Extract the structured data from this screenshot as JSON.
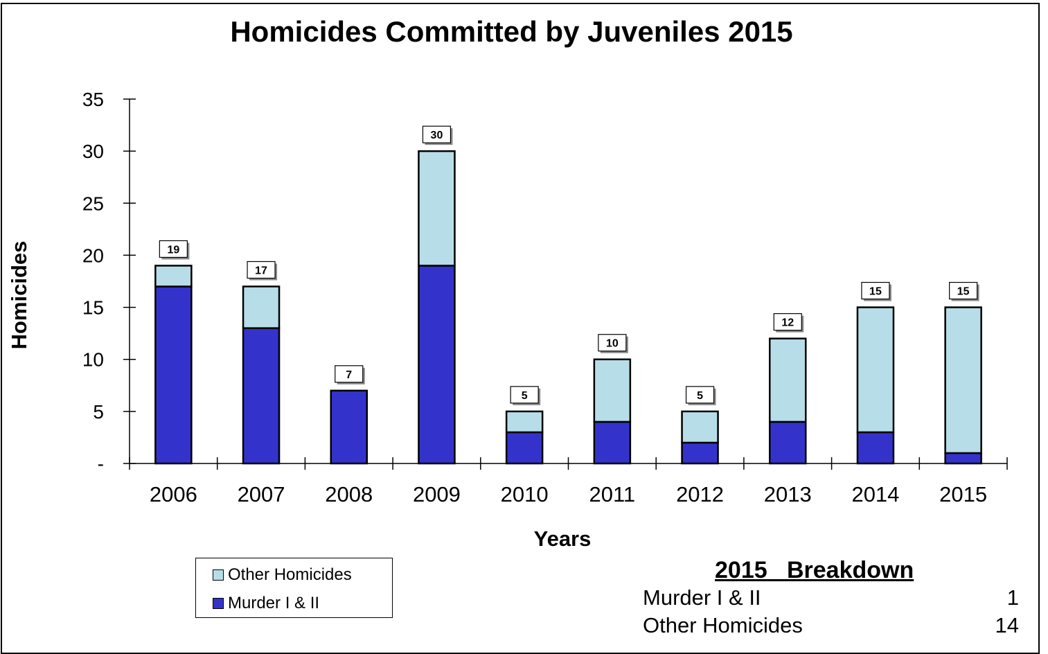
{
  "chart_data": {
    "type": "bar",
    "stacked": true,
    "title": "Homicides Committed by Juveniles 2015",
    "xlabel": "Years",
    "ylabel": "Homicides",
    "categories": [
      "2006",
      "2007",
      "2008",
      "2009",
      "2010",
      "2011",
      "2012",
      "2013",
      "2014",
      "2015"
    ],
    "series": [
      {
        "name": "Murder I & II",
        "values": [
          17,
          13,
          7,
          19,
          3,
          4,
          2,
          4,
          3,
          1
        ],
        "color": "#3333cc"
      },
      {
        "name": "Other Homicides",
        "values": [
          2,
          4,
          0,
          11,
          2,
          6,
          3,
          8,
          12,
          14
        ],
        "color": "#b7dde8"
      }
    ],
    "totals": [
      19,
      17,
      7,
      30,
      5,
      10,
      5,
      12,
      15,
      15
    ],
    "ylim": [
      0,
      35
    ],
    "yticks": [
      "-",
      "5",
      "10",
      "15",
      "20",
      "25",
      "30",
      "35"
    ],
    "ytick_values": [
      0,
      5,
      10,
      15,
      20,
      25,
      30,
      35
    ],
    "grid": false,
    "legend_position": "bottom-left"
  },
  "legend": {
    "items": [
      {
        "label": "Other Homicides",
        "color": "#b7dde8"
      },
      {
        "label": "Murder I & II",
        "color": "#3333cc"
      }
    ]
  },
  "breakdown": {
    "title": "2015   Breakdown",
    "rows": [
      {
        "label": "Murder I & II",
        "value": "1"
      },
      {
        "label": "Other Homicides",
        "value": "14"
      }
    ]
  }
}
